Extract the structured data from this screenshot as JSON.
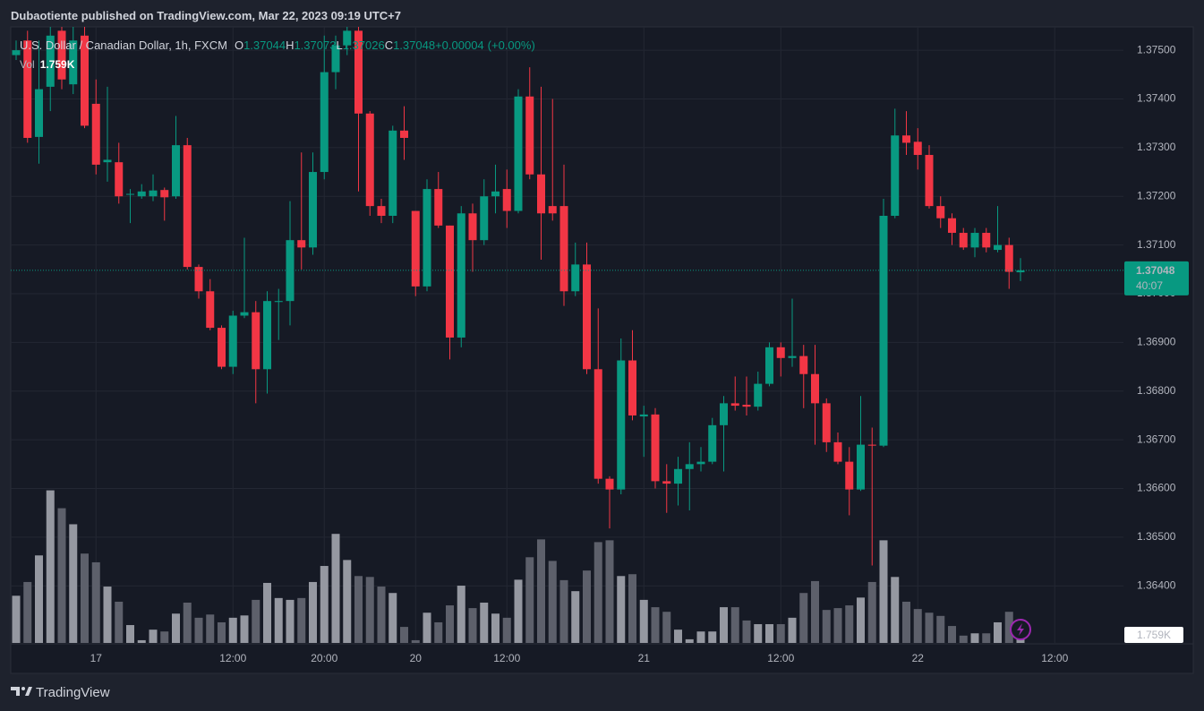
{
  "header": {
    "publisher": "Dubaotiente published on TradingView.com, Mar 22, 2023 09:19 UTC+7"
  },
  "footer": {
    "brand": "TradingView"
  },
  "chart_data": {
    "type": "candlestick",
    "legend": {
      "symbol": "U.S. Dollar / Canadian Dollar, 1h, FXCM",
      "open_label": "O",
      "high_label": "H",
      "low_label": "L",
      "close_label": "C",
      "change": "+0.00004",
      "change_pct": "(+0.00%)",
      "volume_label": "Vol"
    },
    "last_volume_label": "1.759K",
    "countdown": "40:07",
    "categories": [
      null,
      null,
      null,
      null,
      null,
      null,
      null,
      "17",
      null,
      null,
      null,
      null,
      null,
      null,
      null,
      null,
      null,
      null,
      null,
      "12:00",
      null,
      null,
      null,
      null,
      null,
      null,
      null,
      "20:00",
      null,
      null,
      null,
      null,
      null,
      null,
      null,
      "20",
      null,
      null,
      null,
      null,
      null,
      null,
      null,
      "12:00",
      null,
      null,
      null,
      null,
      null,
      null,
      null,
      null,
      null,
      null,
      null,
      "21",
      null,
      null,
      null,
      null,
      null,
      null,
      null,
      null,
      null,
      null,
      null,
      "12:00",
      null,
      null,
      null,
      null,
      null,
      null,
      null,
      null,
      null,
      null,
      null,
      "22",
      null,
      null,
      null,
      null,
      null,
      null,
      null,
      null,
      null,
      null,
      null,
      "12:00",
      null,
      null,
      null,
      null,
      null
    ],
    "open": [
      1.3749,
      1.3752,
      1.37322,
      1.37425,
      1.3754,
      1.3743,
      1.3753,
      1.3739,
      1.3727,
      1.3727,
      1.37205,
      1.372,
      1.372,
      1.37213,
      1.372,
      1.37305,
      1.37055,
      1.37005,
      1.3693,
      1.3685,
      1.36955,
      1.36962,
      1.36845,
      1.36983,
      1.36985,
      1.3711,
      1.37095,
      1.3725,
      1.37455,
      1.3751,
      1.3754,
      1.3737,
      1.3718,
      1.3716,
      1.37335,
      1.3717,
      1.37015,
      1.37215,
      1.3714,
      1.3691,
      1.37165,
      1.3711,
      1.372,
      1.37215,
      1.3717,
      1.37405,
      1.37245,
      1.3718,
      1.3718,
      1.37005,
      1.3706,
      1.36845,
      1.3662,
      1.36598,
      1.36863,
      1.36748,
      1.36752,
      1.36615,
      1.3661,
      1.3664,
      1.3665,
      1.36655,
      1.3673,
      1.36775,
      1.36772,
      1.36768,
      1.36815,
      1.3689,
      1.36868,
      1.36872,
      1.36835,
      1.36775,
      1.36695,
      1.36655,
      1.36598,
      1.3669,
      1.36688,
      1.3716,
      1.37325,
      1.37312,
      1.37285,
      1.3718,
      1.37155,
      1.37125,
      1.37095,
      1.37125,
      1.3709,
      1.371,
      1.37044,
      null,
      null,
      null,
      null,
      null,
      null,
      null,
      null
    ],
    "high": [
      1.3752,
      1.3754,
      1.3752,
      1.3756,
      1.3756,
      1.3756,
      1.3756,
      1.3744,
      1.37425,
      1.3731,
      1.37215,
      1.37225,
      1.37245,
      1.37218,
      1.37365,
      1.3732,
      1.3706,
      1.3703,
      1.36935,
      1.36965,
      1.37115,
      1.36985,
      1.37005,
      1.3701,
      1.3719,
      1.3729,
      1.3729,
      1.3753,
      1.3753,
      1.3756,
      1.3756,
      1.37375,
      1.37195,
      1.37345,
      1.37385,
      1.3717,
      1.37235,
      1.3725,
      1.3714,
      1.3718,
      1.37185,
      1.37235,
      1.37265,
      1.37255,
      1.3742,
      1.37465,
      1.37425,
      1.374,
      1.37265,
      1.37105,
      1.37105,
      1.3697,
      1.36625,
      1.36908,
      1.36925,
      1.3677,
      1.36765,
      1.3665,
      1.36665,
      1.36695,
      1.36685,
      1.36745,
      1.3679,
      1.3683,
      1.3683,
      1.3684,
      1.369,
      1.369,
      1.3699,
      1.36895,
      1.36895,
      1.36785,
      1.36715,
      1.36685,
      1.3679,
      1.36725,
      1.37195,
      1.3738,
      1.37375,
      1.3734,
      1.37305,
      1.372,
      1.37165,
      1.37135,
      1.37135,
      1.37135,
      1.3718,
      1.37115,
      1.37073,
      null,
      null,
      null,
      null,
      null,
      null,
      null,
      null
    ],
    "low": [
      1.3748,
      1.3731,
      1.37267,
      1.37375,
      1.3742,
      1.3741,
      1.3734,
      1.37245,
      1.3723,
      1.37185,
      1.37145,
      1.37195,
      1.3719,
      1.3715,
      1.37195,
      1.3705,
      1.3699,
      1.36925,
      1.36845,
      1.36835,
      1.3695,
      1.36775,
      1.36795,
      1.36905,
      1.36935,
      1.3705,
      1.3708,
      1.37235,
      1.3742,
      1.3749,
      1.3721,
      1.3716,
      1.37145,
      1.37145,
      1.37275,
      1.36995,
      1.37005,
      1.37135,
      1.36865,
      1.3689,
      1.37045,
      1.371,
      1.37165,
      1.37135,
      1.37165,
      1.37235,
      1.3707,
      1.3715,
      1.36975,
      1.36995,
      1.36835,
      1.3661,
      1.36518,
      1.36588,
      1.3674,
      1.36665,
      1.366,
      1.3655,
      1.36565,
      1.36555,
      1.36635,
      1.3665,
      1.36635,
      1.3676,
      1.3675,
      1.3676,
      1.3681,
      1.3683,
      1.3685,
      1.36765,
      1.3669,
      1.36675,
      1.3665,
      1.36545,
      1.36595,
      1.36442,
      1.36685,
      1.37155,
      1.37285,
      1.37255,
      1.37175,
      1.37135,
      1.371,
      1.3709,
      1.37075,
      1.37085,
      1.37085,
      1.3701,
      1.37026,
      null,
      null,
      null,
      null,
      null,
      null,
      null,
      null
    ],
    "close": [
      1.375,
      1.3732,
      1.3742,
      1.3753,
      1.3744,
      1.3752,
      1.37345,
      1.37265,
      1.37275,
      1.372,
      1.37205,
      1.3721,
      1.37212,
      1.37198,
      1.37305,
      1.37055,
      1.37005,
      1.3693,
      1.3685,
      1.36955,
      1.36962,
      1.36845,
      1.36985,
      1.36985,
      1.3711,
      1.37095,
      1.3725,
      1.37455,
      1.3751,
      1.3754,
      1.3737,
      1.3718,
      1.3716,
      1.37335,
      1.3732,
      1.37015,
      1.37215,
      1.3714,
      1.3691,
      1.37165,
      1.3711,
      1.372,
      1.3721,
      1.3717,
      1.37405,
      1.37245,
      1.37165,
      1.37165,
      1.37005,
      1.3706,
      1.36845,
      1.3662,
      1.36598,
      1.36863,
      1.3675,
      1.36752,
      1.36615,
      1.3661,
      1.3664,
      1.3665,
      1.36655,
      1.3673,
      1.36775,
      1.3677,
      1.36768,
      1.36815,
      1.3689,
      1.36868,
      1.36872,
      1.36835,
      1.36775,
      1.36695,
      1.36655,
      1.36598,
      1.3669,
      1.36688,
      1.3716,
      1.37325,
      1.3731,
      1.37285,
      1.3718,
      1.37155,
      1.37125,
      1.37095,
      1.37125,
      1.37095,
      1.371,
      1.37045,
      1.37048,
      null,
      null,
      null,
      null,
      null,
      null,
      null,
      null
    ],
    "volume": [
      10.3,
      13.3,
      19.1,
      33.3,
      29.4,
      25.9,
      19.5,
      17.6,
      12.3,
      9.0,
      3.9,
      0.6,
      2.9,
      2.5,
      6.4,
      8.8,
      5.5,
      6.2,
      4.5,
      5.5,
      6.0,
      9.4,
      13.1,
      9.8,
      9.4,
      9.8,
      13.3,
      16.8,
      23.8,
      18.1,
      14.6,
      14.4,
      12.3,
      10.9,
      3.5,
      0.6,
      6.6,
      4.5,
      8.2,
      12.5,
      7.6,
      8.8,
      6.4,
      5.5,
      13.8,
      18.7,
      22.6,
      17.9,
      13.7,
      11.3,
      15.8,
      22.0,
      22.4,
      14.6,
      15.0,
      9.4,
      7.8,
      6.8,
      2.9,
      0.8,
      2.5,
      2.5,
      7.8,
      7.8,
      4.9,
      4.1,
      4.1,
      4.1,
      5.5,
      10.9,
      13.5,
      7.2,
      7.6,
      8.2,
      9.9,
      13.3,
      22.4,
      14.4,
      9.0,
      7.4,
      6.6,
      5.9,
      3.7,
      1.6,
      2.1,
      2.1,
      4.5,
      6.8,
      1.759,
      null,
      null,
      null,
      null,
      null,
      null,
      null,
      null
    ],
    "ylim": [
      1.36224,
      1.37548
    ],
    "vlim": [
      0,
      34
    ],
    "yticks": [
      {
        "value": 1.364,
        "label": "1.36400"
      },
      {
        "value": 1.365,
        "label": "1.36500"
      },
      {
        "value": 1.366,
        "label": "1.36600"
      },
      {
        "value": 1.367,
        "label": "1.36700"
      },
      {
        "value": 1.368,
        "label": "1.36800"
      },
      {
        "value": 1.369,
        "label": "1.36900"
      },
      {
        "value": 1.37,
        "label": "1.37000"
      },
      {
        "value": 1.371,
        "label": "1.37100"
      },
      {
        "value": 1.372,
        "label": "1.37200"
      },
      {
        "value": 1.373,
        "label": "1.37300"
      },
      {
        "value": 1.374,
        "label": "1.37400"
      },
      {
        "value": 1.375,
        "label": "1.37500"
      }
    ],
    "grid": true,
    "up_color": "#089981",
    "down_color": "#f23645",
    "volume_up_color": "#9598a1",
    "volume_down_color": "#5d606b"
  }
}
